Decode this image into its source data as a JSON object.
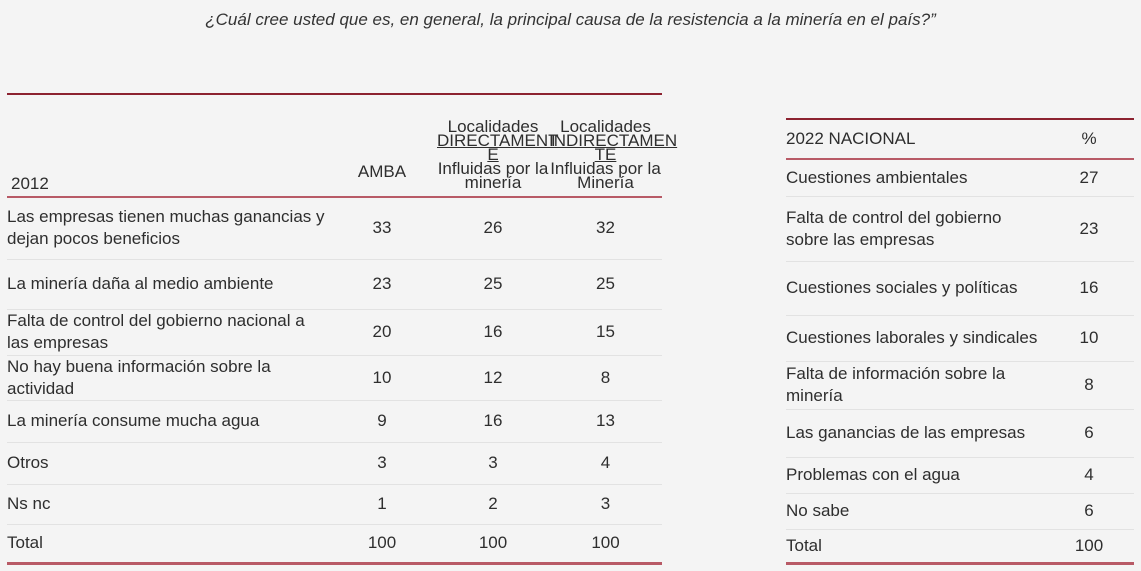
{
  "title": "¿Cuál cree usted que es, en general, la principal causa de la resistencia a la minería en el país?”",
  "table_2012": {
    "year_label": "2012",
    "col_amba": "AMBA",
    "col_direct": {
      "line1": "Localidades",
      "line2": "DIRECTAMENT",
      "line3": "E",
      "line4": "Influidas por la",
      "line5": "minería"
    },
    "col_indirect": {
      "line1": "Localidades",
      "line2": "INDIRECTAMEN",
      "line3": "TE",
      "line4": "Influidas por la",
      "line5": "Minería"
    },
    "rows": [
      {
        "label": "Las empresas tienen muchas ganancias y dejan pocos beneficios",
        "amba": "33",
        "direct": "26",
        "indirect": "32"
      },
      {
        "label": "La minería daña al medio ambiente",
        "amba": "23",
        "direct": "25",
        "indirect": "25"
      },
      {
        "label": "Falta de control del gobierno nacional a las empresas",
        "amba": "20",
        "direct": "16",
        "indirect": "15"
      },
      {
        "label": "No hay buena información sobre la actividad",
        "amba": "10",
        "direct": "12",
        "indirect": "8"
      },
      {
        "label": "La minería consume mucha agua",
        "amba": "9",
        "direct": "16",
        "indirect": "13"
      },
      {
        "label": "Otros",
        "amba": "3",
        "direct": "3",
        "indirect": "4"
      },
      {
        "label": "Ns nc",
        "amba": "1",
        "direct": "2",
        "indirect": "3"
      },
      {
        "label": "Total",
        "amba": "100",
        "direct": "100",
        "indirect": "100"
      }
    ]
  },
  "table_2022": {
    "heading": "2022 NACIONAL",
    "col_pct": "%",
    "rows": [
      {
        "label": "Cuestiones ambientales",
        "value": "27"
      },
      {
        "label": "Falta de control del gobierno sobre las empresas",
        "value": "23"
      },
      {
        "label": "Cuestiones sociales y políticas",
        "value": "16"
      },
      {
        "label": "Cuestiones laborales y sindicales",
        "value": "10"
      },
      {
        "label": "Falta de información sobre la minería",
        "value": "8"
      },
      {
        "label": "Las ganancias de las empresas",
        "value": "6"
      },
      {
        "label": "Problemas con el agua",
        "value": "4"
      },
      {
        "label": "No sabe",
        "value": "6"
      },
      {
        "label": "Total",
        "value": "100"
      }
    ]
  },
  "colors": {
    "accent_red": "#d11a2a",
    "header_maroon": "#8c2230",
    "rule": "#b85a66"
  }
}
